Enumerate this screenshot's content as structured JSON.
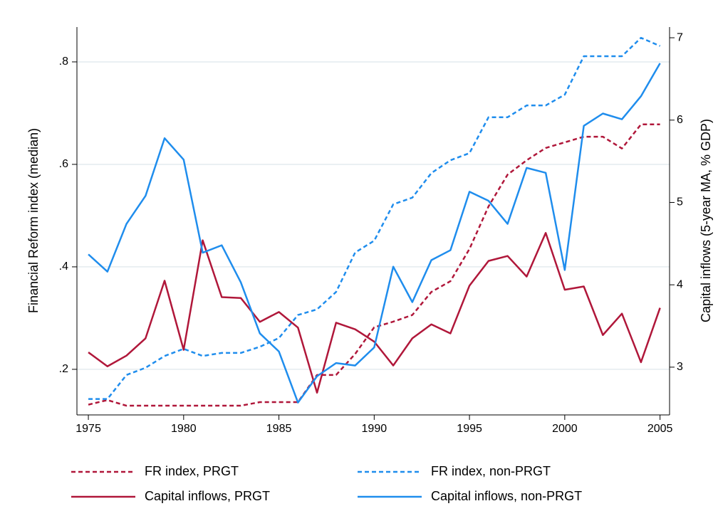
{
  "chart_data": {
    "type": "line",
    "y_label": "Financial Reform index (median)",
    "y2_label": "Capital inflows (5-year MA, % GDP)",
    "x": [
      1975,
      1976,
      1977,
      1978,
      1979,
      1980,
      1981,
      1982,
      1983,
      1984,
      1985,
      1986,
      1987,
      1988,
      1989,
      1990,
      1991,
      1992,
      1993,
      1994,
      1995,
      1996,
      1997,
      1998,
      1999,
      2000,
      2001,
      2002,
      2003,
      2004,
      2005
    ],
    "xlim": [
      1974.4,
      2005.5
    ],
    "xticks": [
      1975,
      1980,
      1985,
      1990,
      1995,
      2000,
      2005
    ],
    "ylim": [
      0.111,
      0.868
    ],
    "yticks": [
      {
        "value": 0.2,
        "label": ".2"
      },
      {
        "value": 0.4,
        "label": ".4"
      },
      {
        "value": 0.6,
        "label": ".6"
      },
      {
        "value": 0.8,
        "label": ".8"
      }
    ],
    "y2lim": [
      2.42,
      7.13
    ],
    "y2ticks": [
      3,
      4,
      5,
      6,
      7
    ],
    "grid": true,
    "legend_position": "bottom",
    "series": [
      {
        "name": "FR index, PRGT",
        "color": "#b0173a",
        "style": "dashed",
        "axis": "y",
        "values": [
          0.131,
          0.14,
          0.129,
          0.129,
          0.129,
          0.129,
          0.129,
          0.129,
          0.129,
          0.136,
          0.136,
          0.136,
          0.189,
          0.189,
          0.23,
          0.282,
          0.293,
          0.306,
          0.351,
          0.372,
          0.435,
          0.518,
          0.58,
          0.608,
          0.632,
          0.643,
          0.654,
          0.654,
          0.631,
          0.678,
          0.678
        ]
      },
      {
        "name": "FR index, non-PRGT",
        "color": "#1f8ded",
        "style": "dashed",
        "axis": "y",
        "values": [
          0.142,
          0.142,
          0.189,
          0.203,
          0.226,
          0.24,
          0.226,
          0.232,
          0.232,
          0.244,
          0.261,
          0.306,
          0.317,
          0.351,
          0.428,
          0.451,
          0.522,
          0.535,
          0.583,
          0.608,
          0.622,
          0.692,
          0.692,
          0.715,
          0.715,
          0.736,
          0.811,
          0.811,
          0.811,
          0.847,
          0.831
        ]
      },
      {
        "name": "Capital inflows, PRGT",
        "color": "#b0173a",
        "style": "solid",
        "axis": "y2",
        "values": [
          3.18,
          3.01,
          3.14,
          3.35,
          4.05,
          3.21,
          4.54,
          3.85,
          3.84,
          3.55,
          3.67,
          3.48,
          2.69,
          3.54,
          3.46,
          3.31,
          3.02,
          3.35,
          3.52,
          3.41,
          3.99,
          4.29,
          4.35,
          4.1,
          4.63,
          3.94,
          3.98,
          3.39,
          3.65,
          3.06,
          3.72
        ]
      },
      {
        "name": "Capital inflows, non-PRGT",
        "color": "#1f8ded",
        "style": "solid",
        "axis": "y2",
        "values": [
          4.37,
          4.16,
          4.74,
          5.08,
          5.78,
          5.52,
          4.39,
          4.48,
          4.03,
          3.41,
          3.19,
          2.57,
          2.89,
          3.05,
          3.02,
          3.24,
          4.22,
          3.79,
          4.3,
          4.42,
          5.13,
          5.02,
          4.74,
          5.42,
          5.36,
          4.18,
          5.93,
          6.08,
          6.01,
          6.29,
          6.69
        ]
      }
    ]
  }
}
